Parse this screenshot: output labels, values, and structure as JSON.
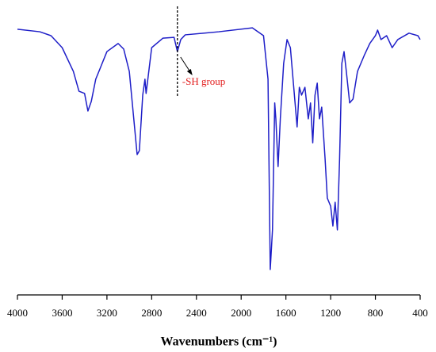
{
  "chart_data": {
    "type": "line",
    "x_label": "Wavenumbers (cm⁻¹)",
    "xlim": [
      4000,
      400
    ],
    "xticks": [
      4000,
      3600,
      3200,
      2800,
      2400,
      2000,
      1600,
      1200,
      800,
      400
    ],
    "ylim": [
      0,
      100
    ],
    "annotations": [
      {
        "text": "-SH group",
        "x": 2570
      }
    ],
    "series": [
      {
        "color": "#1f1fc8",
        "x": [
          4000,
          3800,
          3700,
          3600,
          3500,
          3450,
          3400,
          3370,
          3340,
          3300,
          3200,
          3100,
          3050,
          3000,
          2960,
          2930,
          2910,
          2880,
          2860,
          2850,
          2830,
          2800,
          2700,
          2600,
          2570,
          2540,
          2500,
          2200,
          1900,
          1800,
          1760,
          1740,
          1720,
          1700,
          1690,
          1670,
          1650,
          1620,
          1590,
          1560,
          1530,
          1500,
          1480,
          1460,
          1430,
          1400,
          1380,
          1360,
          1340,
          1320,
          1300,
          1280,
          1250,
          1230,
          1200,
          1180,
          1160,
          1140,
          1120,
          1100,
          1080,
          1060,
          1030,
          1000,
          960,
          900,
          850,
          800,
          780,
          750,
          700,
          650,
          600,
          500,
          420,
          400
        ],
        "values": [
          95.2,
          94.3,
          92.9,
          88.6,
          80.1,
          73.0,
          72.2,
          65.9,
          69.3,
          77.3,
          87.2,
          90.1,
          88.1,
          80.1,
          63.1,
          50.3,
          51.7,
          71.6,
          77.3,
          72.2,
          78.7,
          88.6,
          92.0,
          92.3,
          87.2,
          91.5,
          93.2,
          94.3,
          95.7,
          92.9,
          77.3,
          9.1,
          23.3,
          68.8,
          63.1,
          46.0,
          63.1,
          83.0,
          91.5,
          88.6,
          74.4,
          60.2,
          74.4,
          71.6,
          74.4,
          63.1,
          68.8,
          54.5,
          71.6,
          75.9,
          63.1,
          67.3,
          48.9,
          34.7,
          31.8,
          24.7,
          33.2,
          23.3,
          48.9,
          83.0,
          87.2,
          80.1,
          68.8,
          70.2,
          80.1,
          85.8,
          90.1,
          92.9,
          94.9,
          91.5,
          92.9,
          88.6,
          91.5,
          93.8,
          92.9,
          91.5
        ]
      }
    ]
  }
}
